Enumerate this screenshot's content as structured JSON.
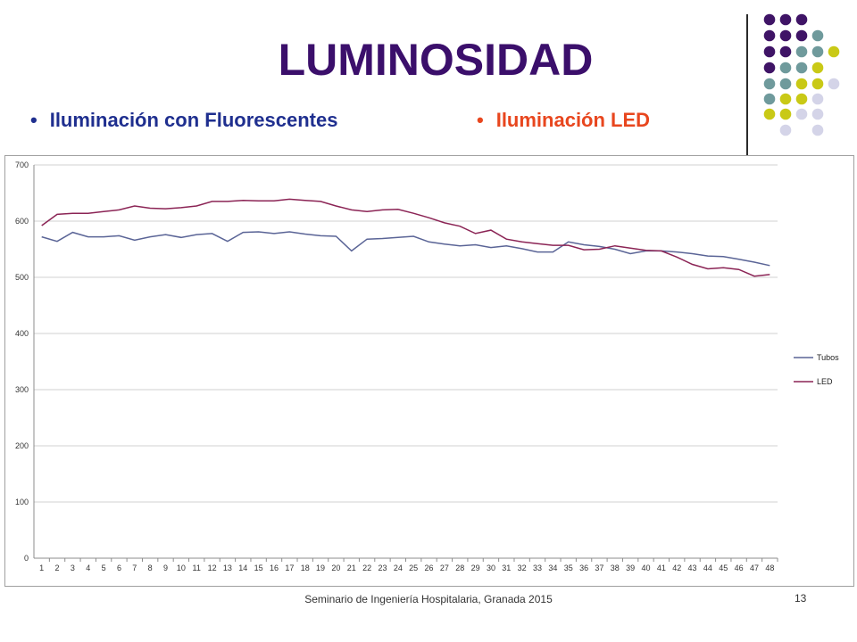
{
  "slide": {
    "title": "LUMINOSIDAD",
    "bullets": [
      "Iluminación con Fluorescentes",
      "Iluminación LED"
    ],
    "bullet_colors": [
      "#1f2f8f",
      "#e8461e"
    ],
    "footer": "Seminario de Ingeniería Hospitalaria, Granada 2015",
    "page_number": "13"
  },
  "chart_data": {
    "type": "line",
    "title": "",
    "xlabel": "",
    "ylabel": "",
    "x": [
      1,
      2,
      3,
      4,
      5,
      6,
      7,
      8,
      9,
      10,
      11,
      12,
      13,
      14,
      15,
      16,
      17,
      18,
      19,
      20,
      21,
      22,
      23,
      24,
      25,
      26,
      27,
      28,
      29,
      30,
      31,
      32,
      33,
      34,
      35,
      36,
      37,
      38,
      39,
      40,
      41,
      42,
      43,
      44,
      45,
      46,
      47,
      48
    ],
    "ylim": [
      0,
      700
    ],
    "yticks": [
      0,
      100,
      200,
      300,
      400,
      500,
      600,
      700
    ],
    "grid": true,
    "legend": "right",
    "series": [
      {
        "name": "Tubos",
        "color": "#5a6496",
        "values": [
          572,
          564,
          580,
          572,
          572,
          574,
          566,
          572,
          576,
          571,
          576,
          578,
          564,
          580,
          581,
          578,
          581,
          577,
          574,
          573,
          547,
          568,
          569,
          571,
          573,
          563,
          559,
          556,
          558,
          553,
          556,
          551,
          545,
          545,
          563,
          558,
          555,
          550,
          542,
          547,
          547,
          545,
          542,
          538,
          537,
          532,
          527,
          521
        ]
      },
      {
        "name": "LED",
        "color": "#8b2455",
        "values": [
          592,
          612,
          614,
          614,
          617,
          620,
          627,
          623,
          622,
          624,
          627,
          635,
          635,
          637,
          636,
          636,
          639,
          637,
          635,
          627,
          620,
          617,
          620,
          621,
          614,
          606,
          597,
          591,
          578,
          584,
          568,
          563,
          560,
          557,
          557,
          549,
          550,
          556,
          552,
          548,
          547,
          536,
          523,
          515,
          517,
          514,
          502,
          505
        ]
      }
    ]
  }
}
